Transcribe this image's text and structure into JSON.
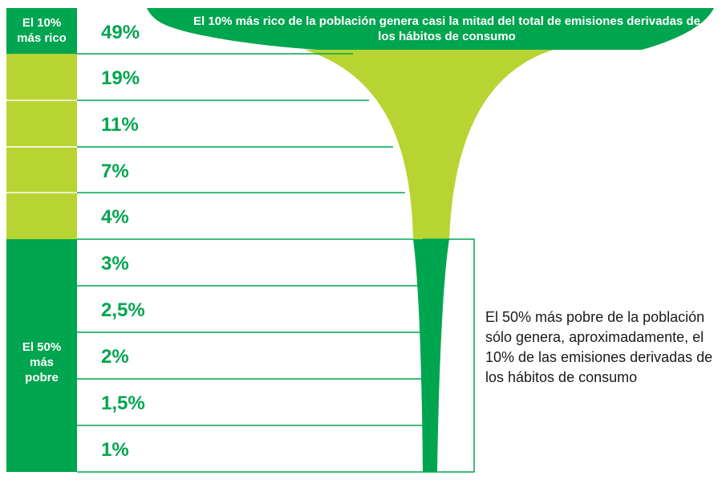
{
  "chart_data": {
    "type": "funnel",
    "title": "El 10% más rico de la población genera casi la mitad del total de emisiones derivadas de los hábitos de consumo",
    "values": [
      49,
      19,
      11,
      7,
      4,
      3,
      2.5,
      2,
      1.5,
      1
    ],
    "value_labels": [
      "49%",
      "19%",
      "11%",
      "7%",
      "4%",
      "3%",
      "2,5%",
      "2%",
      "1,5%",
      "1%"
    ],
    "groups": [
      {
        "label": "El 10% más rico",
        "rows": [
          0
        ]
      },
      {
        "label": "El 50% más pobre",
        "rows": [
          5,
          6,
          7,
          8,
          9
        ]
      }
    ],
    "annotation": "El 50% más pobre de la población sólo genera, aproximadamente, el 10% de las emisiones derivadas de los hábitos de consumo"
  },
  "labels": {
    "rich_top": "El 10% más rico",
    "rich_line1": "El 10%",
    "rich_line2": "más rico",
    "poor_line1": "El 50%",
    "poor_line2": "más",
    "poor_line3": "pobre"
  },
  "colors": {
    "dark_green": "#00a54f",
    "lime": "#b8d432",
    "white": "#ffffff"
  }
}
